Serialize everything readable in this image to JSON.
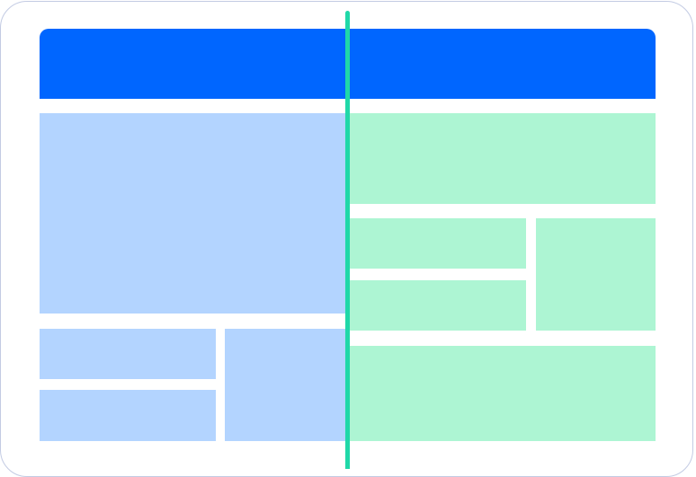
{
  "colors": {
    "frame_border": "#c3cbe3",
    "header": "#0066ff",
    "left_panels": "#b3d4ff",
    "right_panels": "#adf5d3",
    "divider": "#20d8a8"
  }
}
